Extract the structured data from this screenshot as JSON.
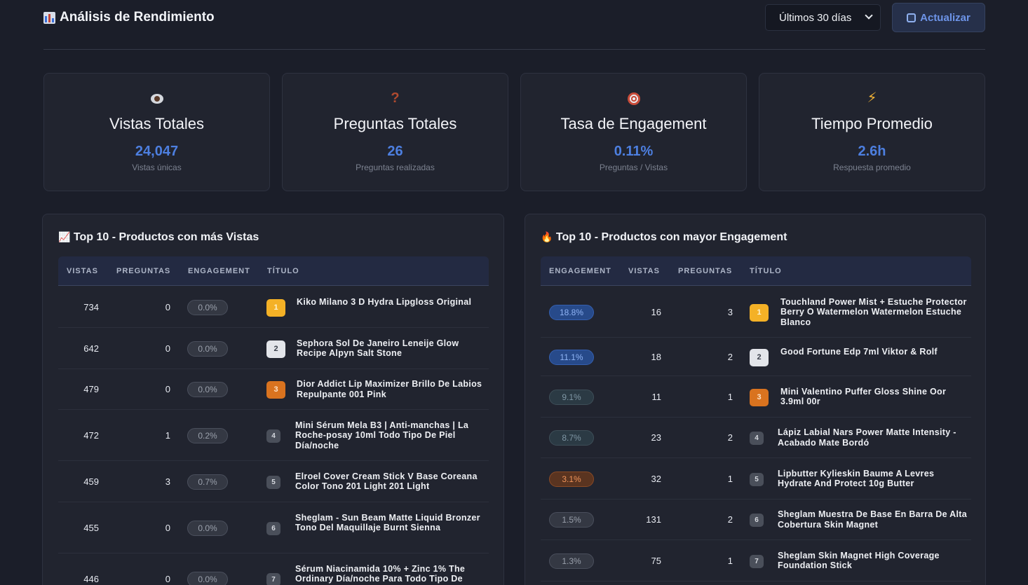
{
  "header": {
    "title": "Análisis de Rendimiento",
    "range_label": "Últimos 30 días",
    "refresh_label": "Actualizar"
  },
  "stats": [
    {
      "title": "Vistas Totales",
      "value": "24,047",
      "sub": "Vistas únicas"
    },
    {
      "title": "Preguntas Totales",
      "value": "26",
      "sub": "Preguntas realizadas"
    },
    {
      "title": "Tasa de Engagement",
      "value": "0.11%",
      "sub": "Preguntas / Vistas"
    },
    {
      "title": "Tiempo Promedio",
      "value": "2.6h",
      "sub": "Respuesta promedio"
    }
  ],
  "views_panel": {
    "title": "Top 10 - Productos con más Vistas",
    "columns": [
      "VISTAS",
      "PREGUNTAS",
      "ENGAGEMENT",
      "TÍTULO"
    ],
    "rows": [
      {
        "vistas": "734",
        "preguntas": "0",
        "engagement": "0.0%",
        "rank": "1",
        "titulo": "Kiko Milano 3 D Hydra Lipgloss Original"
      },
      {
        "vistas": "642",
        "preguntas": "0",
        "engagement": "0.0%",
        "rank": "2",
        "titulo": "Sephora Sol De Janeiro Leneije Glow Recipe Alpyn Salt Stone"
      },
      {
        "vistas": "479",
        "preguntas": "0",
        "engagement": "0.0%",
        "rank": "3",
        "titulo": "Dior Addict Lip Maximizer Brillo De Labios Repulpante 001 Pink"
      },
      {
        "vistas": "472",
        "preguntas": "1",
        "engagement": "0.2%",
        "rank": "4",
        "titulo": "Mini Sérum Mela B3 | Anti-manchas | La Roche-posay 10ml Todo Tipo De Piel Día/noche"
      },
      {
        "vistas": "459",
        "preguntas": "3",
        "engagement": "0.7%",
        "rank": "5",
        "titulo": "Elroel Cover Cream Stick V Base Coreana Color Tono 201 Light 201 Light"
      },
      {
        "vistas": "455",
        "preguntas": "0",
        "engagement": "0.0%",
        "rank": "6",
        "titulo": "Sheglam - Sun Beam Matte Liquid Bronzer Tono Del Maquillaje Burnt Sienna"
      },
      {
        "vistas": "446",
        "preguntas": "0",
        "engagement": "0.0%",
        "rank": "7",
        "titulo": "Sérum Niacinamida 10% + Zinc 1% The Ordinary Día/noche Para Todo Tipo De"
      }
    ]
  },
  "engagement_panel": {
    "title": "Top 10 - Productos con mayor Engagement",
    "columns": [
      "ENGAGEMENT",
      "VISTAS",
      "PREGUNTAS",
      "TÍTULO"
    ],
    "rows": [
      {
        "engagement": "18.8%",
        "vistas": "16",
        "preguntas": "3",
        "rank": "1",
        "titulo": "Touchland Power Mist + Estuche Protector Berry O Watermelon Watermelon Estuche Blanco"
      },
      {
        "engagement": "11.1%",
        "vistas": "18",
        "preguntas": "2",
        "rank": "2",
        "titulo": "Good Fortune Edp 7ml Viktor & Rolf"
      },
      {
        "engagement": "9.1%",
        "vistas": "11",
        "preguntas": "1",
        "rank": "3",
        "titulo": "Mini Valentino Puffer Gloss Shine Oor 3.9ml 00r"
      },
      {
        "engagement": "8.7%",
        "vistas": "23",
        "preguntas": "2",
        "rank": "4",
        "titulo": "Lápiz Labial Nars Power Matte Intensity - Acabado Mate Bordó"
      },
      {
        "engagement": "3.1%",
        "vistas": "32",
        "preguntas": "1",
        "rank": "5",
        "titulo": "Lipbutter Kylieskin Baume A Levres Hydrate And Protect 10g Butter"
      },
      {
        "engagement": "1.5%",
        "vistas": "131",
        "preguntas": "2",
        "rank": "6",
        "titulo": "Sheglam Muestra De Base En Barra De Alta Cobertura Skin Magnet"
      },
      {
        "engagement": "1.3%",
        "vistas": "75",
        "preguntas": "1",
        "rank": "7",
        "titulo": "Sheglam Skin Magnet High Coverage Foundation Stick"
      }
    ]
  }
}
